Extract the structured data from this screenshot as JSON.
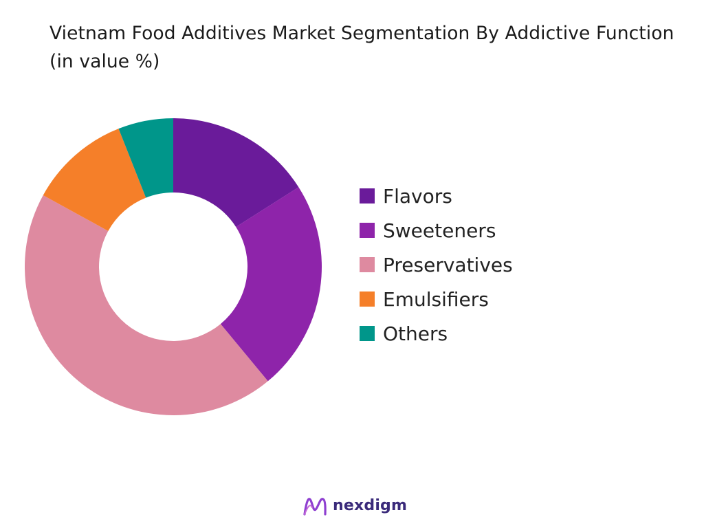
{
  "chart_data": {
    "type": "pie",
    "variant": "donut",
    "title": "Vietnam Food Additives Market Segmentation By Addictive Function (in value %)",
    "categories": [
      "Flavors",
      "Sweeteners",
      "Preservatives",
      "Emulsifiers",
      "Others"
    ],
    "values": [
      16,
      23,
      44,
      11,
      6
    ],
    "colors": [
      "#6a1b9a",
      "#8e24aa",
      "#de8aa0",
      "#f57f29",
      "#00968a"
    ],
    "legend_position": "right"
  },
  "footer": {
    "brand": "nexdigm"
  }
}
